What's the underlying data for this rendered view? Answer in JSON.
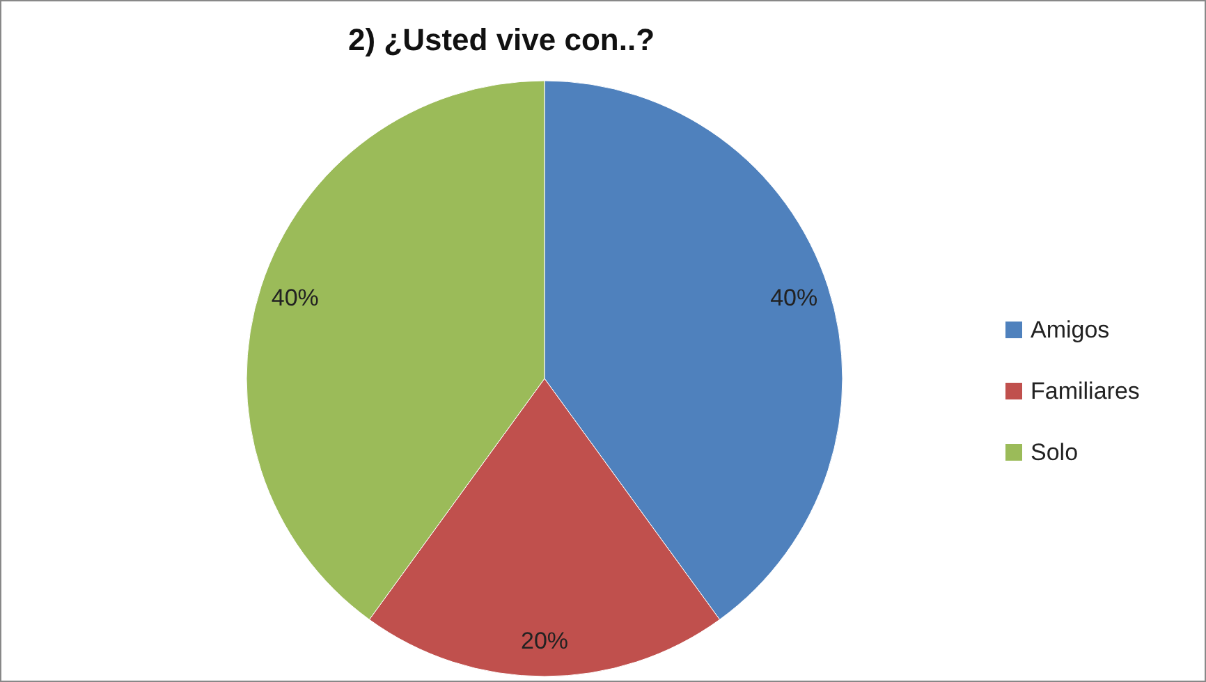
{
  "chart_data": {
    "type": "pie",
    "title": "2)  ¿Usted vive con..?",
    "categories": [
      "Amigos",
      "Familiares",
      "Solo"
    ],
    "values": [
      40,
      20,
      40
    ],
    "value_labels": [
      "40%",
      "20%",
      "40%"
    ],
    "colors": [
      "#4f81bd",
      "#c0504d",
      "#9bbb59"
    ],
    "legend": "right"
  }
}
